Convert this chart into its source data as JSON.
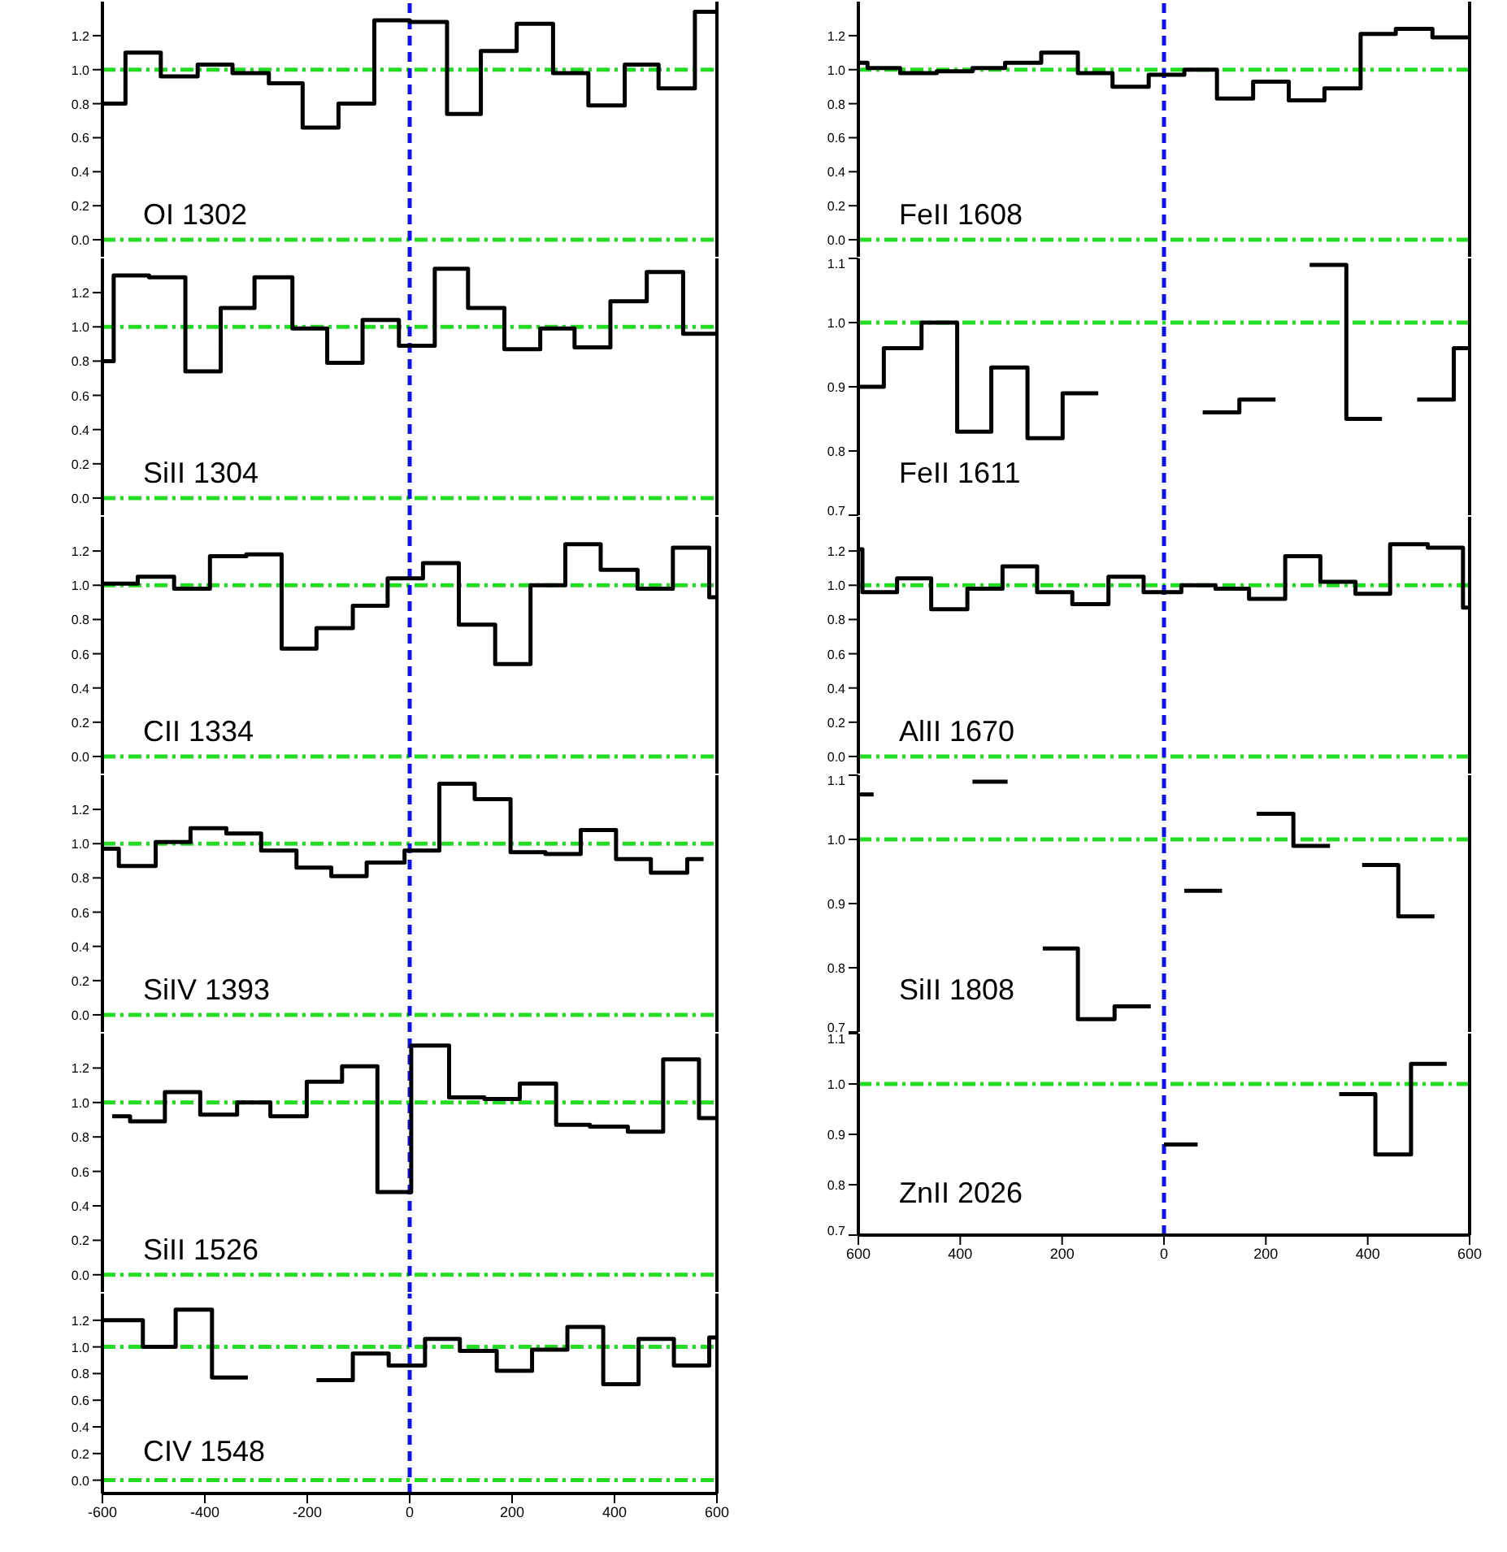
{
  "chart_data": [
    {
      "type": "step",
      "annotations": [
        "OI 1302"
      ],
      "color": "#000000",
      "xlim": [
        -600,
        600
      ],
      "ylim": [
        -0.1,
        1.4
      ],
      "tick_labels": "y",
      "xticks": [
        -600,
        -400,
        -200,
        0,
        200,
        400,
        600
      ],
      "yticks": [
        {
          "value": 0,
          "label": "0.0"
        },
        {
          "value": 0.2,
          "label": "0.2"
        },
        {
          "value": 0.4,
          "label": "0.4"
        },
        {
          "value": 0.6,
          "label": "0.6"
        },
        {
          "value": 0.8,
          "label": "0.8"
        },
        {
          "value": 1,
          "label": "1.0"
        },
        {
          "value": 1.2,
          "label": "1.2"
        }
      ],
      "ref_lines": [
        {
          "axis": "y",
          "value": 1,
          "color": "#22dd22",
          "line_style": "dashdot"
        },
        {
          "axis": "y",
          "value": 0,
          "color": "#22dd22",
          "line_style": "dashdot"
        },
        {
          "axis": "x",
          "value": 0,
          "color": "#1111ee",
          "line_style": "dashed"
        }
      ],
      "x": [
        -600,
        -555,
        -486,
        -414,
        -346,
        -275,
        -209,
        -139,
        -69,
        0,
        73,
        139,
        209,
        280,
        349,
        420,
        486,
        557,
        600
      ],
      "values": [
        0.8,
        1.1,
        0.96,
        1.03,
        0.98,
        0.92,
        0.66,
        0.8,
        1.29,
        1.28,
        0.74,
        1.11,
        1.27,
        0.98,
        0.79,
        1.03,
        0.89,
        1.34,
        1.34
      ]
    },
    {
      "type": "step",
      "annotations": [
        "SiII 1304"
      ],
      "color": "#000000",
      "xlim": [
        -600,
        600
      ],
      "ylim": [
        -0.1,
        1.4
      ],
      "tick_labels": "y",
      "xticks": [
        -600,
        -400,
        -200,
        0,
        200,
        400,
        600
      ],
      "yticks": [
        {
          "value": 0,
          "label": "0.0"
        },
        {
          "value": 0.2,
          "label": "0.2"
        },
        {
          "value": 0.4,
          "label": "0.4"
        },
        {
          "value": 0.6,
          "label": "0.6"
        },
        {
          "value": 0.8,
          "label": "0.8"
        },
        {
          "value": 1,
          "label": "1.0"
        },
        {
          "value": 1.2,
          "label": "1.2"
        }
      ],
      "ref_lines": [
        {
          "axis": "y",
          "value": 1,
          "color": "#22dd22",
          "line_style": "dashdot"
        },
        {
          "axis": "y",
          "value": 0,
          "color": "#22dd22",
          "line_style": "dashdot"
        },
        {
          "axis": "x",
          "value": 0,
          "color": "#1111ee",
          "line_style": "dashed"
        }
      ],
      "x": [
        -600,
        -578,
        -509,
        -438,
        -369,
        -303,
        -229,
        -161,
        -92,
        -21,
        49,
        114,
        185,
        255,
        322,
        392,
        463,
        534,
        600
      ],
      "values": [
        0.8,
        1.3,
        1.29,
        0.74,
        1.11,
        1.29,
        0.99,
        0.79,
        1.04,
        0.89,
        1.34,
        1.11,
        0.87,
        0.99,
        0.88,
        1.15,
        1.32,
        0.96,
        0.96
      ]
    },
    {
      "type": "step",
      "annotations": [
        "CII 1334"
      ],
      "color": "#000000",
      "xlim": [
        -600,
        600
      ],
      "ylim": [
        -0.1,
        1.4
      ],
      "tick_labels": "y",
      "xticks": [
        -600,
        -400,
        -200,
        0,
        200,
        400,
        600
      ],
      "yticks": [
        {
          "value": 0,
          "label": "0.0"
        },
        {
          "value": 0.2,
          "label": "0.2"
        },
        {
          "value": 0.4,
          "label": "0.4"
        },
        {
          "value": 0.6,
          "label": "0.6"
        },
        {
          "value": 0.8,
          "label": "0.8"
        },
        {
          "value": 1,
          "label": "1.0"
        },
        {
          "value": 1.2,
          "label": "1.2"
        }
      ],
      "ref_lines": [
        {
          "axis": "y",
          "value": 1,
          "color": "#22dd22",
          "line_style": "dashdot"
        },
        {
          "axis": "y",
          "value": 0,
          "color": "#22dd22",
          "line_style": "dashdot"
        },
        {
          "axis": "x",
          "value": 0,
          "color": "#1111ee",
          "line_style": "dashed"
        }
      ],
      "x": [
        -600,
        -531,
        -460,
        -390,
        -319,
        -250,
        -182,
        -111,
        -43,
        26,
        96,
        167,
        236,
        304,
        373,
        445,
        514,
        585,
        600
      ],
      "values": [
        1.01,
        1.05,
        0.98,
        1.17,
        1.18,
        0.63,
        0.75,
        0.88,
        1.04,
        1.13,
        0.77,
        0.54,
        1.0,
        1.24,
        1.09,
        0.98,
        1.22,
        0.93,
        0.93
      ]
    },
    {
      "type": "step",
      "annotations": [
        "SiIV 1393"
      ],
      "color": "#000000",
      "xlim": [
        -600,
        600
      ],
      "ylim": [
        -0.1,
        1.4
      ],
      "tick_labels": "y",
      "xticks": [
        -600,
        -400,
        -200,
        0,
        200,
        400,
        600
      ],
      "yticks": [
        {
          "value": 0,
          "label": "0.0"
        },
        {
          "value": 0.2,
          "label": "0.2"
        },
        {
          "value": 0.4,
          "label": "0.4"
        },
        {
          "value": 0.6,
          "label": "0.6"
        },
        {
          "value": 0.8,
          "label": "0.8"
        },
        {
          "value": 1,
          "label": "1.0"
        },
        {
          "value": 1.2,
          "label": "1.2"
        }
      ],
      "ref_lines": [
        {
          "axis": "y",
          "value": 1,
          "color": "#22dd22",
          "line_style": "dashdot"
        },
        {
          "axis": "y",
          "value": 0,
          "color": "#22dd22",
          "line_style": "dashdot"
        },
        {
          "axis": "x",
          "value": 0,
          "color": "#1111ee",
          "line_style": "dashed"
        }
      ],
      "x": [
        -600,
        -568,
        -496,
        -428,
        -358,
        -290,
        -221,
        -153,
        -84,
        -10,
        58,
        127,
        197,
        265,
        334,
        403,
        471,
        542,
        574
      ],
      "values": [
        0.97,
        0.87,
        1.01,
        1.09,
        1.06,
        0.96,
        0.86,
        0.81,
        0.89,
        0.96,
        1.35,
        1.26,
        0.95,
        0.94,
        1.08,
        0.91,
        0.83,
        0.91,
        0.91
      ]
    },
    {
      "type": "step",
      "annotations": [
        "SiII 1526"
      ],
      "color": "#000000",
      "xlim": [
        -600,
        600
      ],
      "ylim": [
        -0.1,
        1.4
      ],
      "tick_labels": "y",
      "xticks": [
        -600,
        -400,
        -200,
        0,
        200,
        400,
        600
      ],
      "yticks": [
        {
          "value": 0,
          "label": "0.0"
        },
        {
          "value": 0.2,
          "label": "0.2"
        },
        {
          "value": 0.4,
          "label": "0.4"
        },
        {
          "value": 0.6,
          "label": "0.6"
        },
        {
          "value": 0.8,
          "label": "0.8"
        },
        {
          "value": 1,
          "label": "1.0"
        },
        {
          "value": 1.2,
          "label": "1.2"
        }
      ],
      "ref_lines": [
        {
          "axis": "y",
          "value": 1,
          "color": "#22dd22",
          "line_style": "dashdot"
        },
        {
          "axis": "y",
          "value": 0,
          "color": "#22dd22",
          "line_style": "dashdot"
        },
        {
          "axis": "x",
          "value": 0,
          "color": "#1111ee",
          "line_style": "dashed"
        }
      ],
      "x": [
        -581,
        -546,
        -478,
        -409,
        -337,
        -272,
        -201,
        -132,
        -63,
        3,
        77,
        146,
        215,
        286,
        352,
        426,
        495,
        565,
        600
      ],
      "values": [
        0.92,
        0.89,
        1.06,
        0.93,
        1.0,
        0.92,
        1.12,
        1.21,
        0.48,
        1.33,
        1.03,
        1.02,
        1.11,
        0.87,
        0.86,
        0.83,
        1.25,
        0.91,
        0.91
      ]
    },
    {
      "type": "step",
      "annotations": [
        "CIV 1548"
      ],
      "xlim": [
        -600,
        600
      ],
      "ylim": [
        -0.1,
        1.4
      ],
      "xticks": [
        -600,
        -400,
        -200,
        0,
        200,
        400,
        600
      ],
      "yticks": [
        {
          "value": 0,
          "label": "0.0"
        },
        {
          "value": 0.2,
          "label": "0.2"
        },
        {
          "value": 0.4,
          "label": "0.4"
        },
        {
          "value": 0.6,
          "label": "0.6"
        },
        {
          "value": 0.8,
          "label": "0.8"
        },
        {
          "value": 1,
          "label": "1.0"
        },
        {
          "value": 1.2,
          "label": "1.2"
        }
      ],
      "ref_lines": [
        {
          "axis": "y",
          "value": 1,
          "color": "#22dd22",
          "line_style": "dashdot"
        },
        {
          "axis": "y",
          "value": 0,
          "color": "#22dd22",
          "line_style": "dashdot"
        },
        {
          "axis": "x",
          "value": 0,
          "color": "#1111ee",
          "line_style": "dashed"
        }
      ],
      "series": [
        {
          "color": "#000000",
          "x": [
            -600,
            -521,
            -457,
            -386,
            -316
          ],
          "values": [
            1.2,
            1.0,
            1.28,
            0.77,
            0.77
          ]
        },
        {
          "color": "#000000",
          "x": [
            -182,
            -111,
            -41,
            30,
            98,
            170,
            239,
            308,
            378,
            447,
            516,
            585,
            600
          ],
          "values": [
            0.75,
            0.95,
            0.86,
            1.06,
            0.97,
            0.82,
            0.98,
            1.15,
            0.72,
            1.06,
            0.86,
            1.07,
            1.07
          ]
        }
      ]
    },
    {
      "type": "step",
      "annotations": [
        "FeII 1608"
      ],
      "color": "#000000",
      "xlim": [
        -600,
        600
      ],
      "ylim": [
        -0.1,
        1.4
      ],
      "tick_labels": "y",
      "xticks": [
        -600,
        -400,
        -200,
        0,
        200,
        400,
        600
      ],
      "yticks": [
        {
          "value": 0,
          "label": "0.0"
        },
        {
          "value": 0.2,
          "label": "0.2"
        },
        {
          "value": 0.4,
          "label": "0.4"
        },
        {
          "value": 0.6,
          "label": "0.6"
        },
        {
          "value": 0.8,
          "label": "0.8"
        },
        {
          "value": 1,
          "label": "1.0"
        },
        {
          "value": 1.2,
          "label": "1.2"
        }
      ],
      "ref_lines": [
        {
          "axis": "y",
          "value": 1,
          "color": "#22dd22",
          "line_style": "dashdot"
        },
        {
          "axis": "y",
          "value": 0,
          "color": "#22dd22",
          "line_style": "dashdot"
        },
        {
          "axis": "x",
          "value": 0,
          "color": "#1111ee",
          "line_style": "dashed"
        }
      ],
      "x": [
        -600,
        -582,
        -518,
        -446,
        -376,
        -312,
        -241,
        -169,
        -101,
        -30,
        40,
        104,
        175,
        245,
        315,
        386,
        455,
        527,
        600
      ],
      "values": [
        1.04,
        1.01,
        0.98,
        0.99,
        1.01,
        1.04,
        1.1,
        0.98,
        0.9,
        0.97,
        1.0,
        0.83,
        0.93,
        0.82,
        0.89,
        1.21,
        1.24,
        1.19,
        1.19
      ]
    },
    {
      "type": "step",
      "annotations": [
        "FeII 1611"
      ],
      "xlim": [
        -600,
        600
      ],
      "ylim": [
        0.7,
        1.1
      ],
      "tick_labels": "y",
      "xticks": [
        -600,
        -400,
        -200,
        0,
        200,
        400,
        600
      ],
      "yticks": [
        {
          "value": 0.7,
          "label": "0.7"
        },
        {
          "value": 0.8,
          "label": "0.8"
        },
        {
          "value": 0.9,
          "label": "0.9"
        },
        {
          "value": 1,
          "label": "1.0"
        },
        {
          "value": 1.1,
          "label": "1.1"
        }
      ],
      "ref_lines": [
        {
          "axis": "y",
          "value": 1,
          "color": "#22dd22",
          "line_style": "dashdot"
        },
        {
          "axis": "x",
          "value": 0,
          "color": "#1111ee",
          "line_style": "dashed"
        }
      ],
      "series": [
        {
          "color": "#000000",
          "x": [
            -600,
            -550,
            -476,
            -406,
            -339,
            -268,
            -199,
            -129
          ],
          "values": [
            0.9,
            0.96,
            1.0,
            0.83,
            0.93,
            0.82,
            0.89,
            0.89
          ]
        },
        {
          "color": "#000000",
          "x": [
            76,
            148,
            219
          ],
          "values": [
            0.86,
            0.88,
            0.88
          ]
        },
        {
          "color": "#000000",
          "x": [
            286,
            358,
            428
          ],
          "values": [
            1.09,
            0.85,
            0.85
          ]
        },
        {
          "color": "#000000",
          "x": [
            497,
            569,
            600
          ],
          "values": [
            0.88,
            0.96,
            0.96
          ]
        }
      ]
    },
    {
      "type": "step",
      "annotations": [
        "AlII 1670"
      ],
      "color": "#000000",
      "xlim": [
        -600,
        600
      ],
      "ylim": [
        -0.1,
        1.4
      ],
      "tick_labels": "y",
      "xticks": [
        -600,
        -400,
        -200,
        0,
        200,
        400,
        600
      ],
      "yticks": [
        {
          "value": 0,
          "label": "0.0"
        },
        {
          "value": 0.2,
          "label": "0.2"
        },
        {
          "value": 0.4,
          "label": "0.4"
        },
        {
          "value": 0.6,
          "label": "0.6"
        },
        {
          "value": 0.8,
          "label": "0.8"
        },
        {
          "value": 1,
          "label": "1.0"
        },
        {
          "value": 1.2,
          "label": "1.2"
        }
      ],
      "ref_lines": [
        {
          "axis": "y",
          "value": 1,
          "color": "#22dd22",
          "line_style": "dashdot"
        },
        {
          "axis": "y",
          "value": 0,
          "color": "#22dd22",
          "line_style": "dashdot"
        },
        {
          "axis": "x",
          "value": 0,
          "color": "#1111ee",
          "line_style": "dashed"
        }
      ],
      "x": [
        -600,
        -592,
        -524,
        -457,
        -386,
        -317,
        -249,
        -180,
        -109,
        -40,
        34,
        101,
        167,
        238,
        307,
        376,
        444,
        518,
        587,
        600
      ],
      "values": [
        1.21,
        0.96,
        1.04,
        0.86,
        0.98,
        1.11,
        0.96,
        0.89,
        1.05,
        0.96,
        1.0,
        0.98,
        0.92,
        1.17,
        1.02,
        0.95,
        1.24,
        1.22,
        0.87,
        0.87
      ]
    },
    {
      "type": "step",
      "annotations": [
        "SiII 1808"
      ],
      "xlim": [
        -600,
        600
      ],
      "ylim": [
        0.7,
        1.1
      ],
      "tick_labels": "y",
      "xticks": [
        -600,
        -400,
        -200,
        0,
        200,
        400,
        600
      ],
      "yticks": [
        {
          "value": 0.7,
          "label": "0.7"
        },
        {
          "value": 0.8,
          "label": "0.8"
        },
        {
          "value": 0.9,
          "label": "0.9"
        },
        {
          "value": 1,
          "label": "1.0"
        },
        {
          "value": 1.1,
          "label": "1.1"
        }
      ],
      "ref_lines": [
        {
          "axis": "y",
          "value": 1,
          "color": "#22dd22",
          "line_style": "dashdot"
        },
        {
          "axis": "x",
          "value": 0,
          "color": "#1111ee",
          "line_style": "dashed"
        }
      ],
      "series": [
        {
          "color": "#000000",
          "x": [
            -600,
            -570
          ],
          "values": [
            1.07,
            1.07
          ]
        },
        {
          "color": "#000000",
          "x": [
            -376,
            -307
          ],
          "values": [
            1.09,
            1.09
          ]
        },
        {
          "color": "#000000",
          "x": [
            -238,
            -169,
            -97,
            -26
          ],
          "values": [
            0.83,
            0.72,
            0.74,
            0.74
          ]
        },
        {
          "color": "#000000",
          "x": [
            40,
            114
          ],
          "values": [
            0.92,
            0.92
          ]
        },
        {
          "color": "#000000",
          "x": [
            182,
            254,
            326
          ],
          "values": [
            1.04,
            0.99,
            0.99
          ]
        },
        {
          "color": "#000000",
          "x": [
            389,
            460,
            531
          ],
          "values": [
            0.96,
            0.88,
            0.88
          ]
        }
      ]
    },
    {
      "type": "step",
      "annotations": [
        "ZnII 2026"
      ],
      "xlim": [
        -600,
        600
      ],
      "ylim": [
        0.7,
        1.1
      ],
      "xticks": [
        {
          "value": -600,
          "label": "600"
        },
        {
          "value": -400,
          "label": "400"
        },
        {
          "value": -200,
          "label": "200"
        },
        0,
        200,
        400,
        600
      ],
      "yticks": [
        {
          "value": 0.7,
          "label": "0.7"
        },
        {
          "value": 0.8,
          "label": "0.8"
        },
        {
          "value": 0.9,
          "label": "0.9"
        },
        {
          "value": 1,
          "label": "1.0"
        },
        {
          "value": 1.1,
          "label": "1.1"
        }
      ],
      "ref_lines": [
        {
          "axis": "y",
          "value": 1,
          "color": "#22dd22",
          "line_style": "dashdot"
        },
        {
          "axis": "x",
          "value": 0,
          "color": "#1111ee",
          "line_style": "dashed"
        }
      ],
      "series": [
        {
          "color": "#000000",
          "x": [
            0,
            66
          ],
          "values": [
            0.88,
            0.88
          ]
        },
        {
          "color": "#000000",
          "x": [
            344,
            415,
            485,
            555
          ],
          "values": [
            0.98,
            0.86,
            1.04,
            1.04
          ]
        }
      ]
    }
  ]
}
